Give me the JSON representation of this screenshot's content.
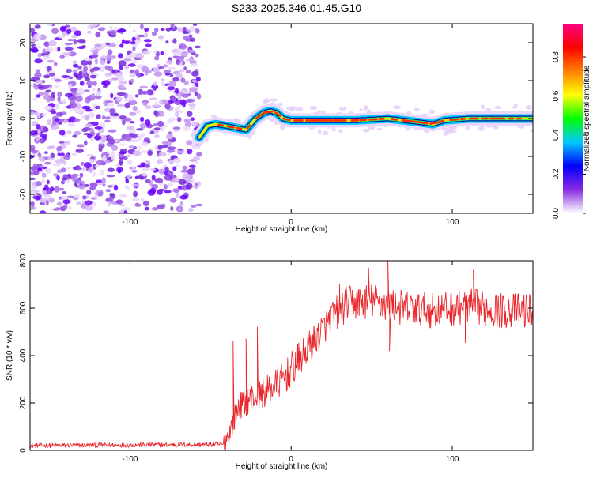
{
  "title": "S233.2025.346.01.45.G10",
  "charts": {
    "spectrogram": {
      "type": "heatmap",
      "xlabel": "Height of straight line (km)",
      "ylabel": "Frequency (Hz)",
      "xlim": [
        -162,
        150
      ],
      "ylim": [
        -25,
        25
      ],
      "xticks": [
        -100,
        0,
        100
      ],
      "xtick_labels": [
        "-100",
        "0",
        "100"
      ],
      "yticks": [
        -20,
        -10,
        0,
        10,
        20
      ],
      "ytick_labels": [
        "-20",
        "-10",
        "0",
        "10",
        "20"
      ],
      "noise_region_end_km": -57,
      "tone_track": {
        "x": [
          -57,
          -52,
          -47,
          -40,
          -34,
          -28,
          -22,
          -17,
          -13,
          -9,
          -5,
          0,
          10,
          20,
          40,
          60,
          80,
          88,
          95,
          110,
          130,
          150
        ],
        "y": [
          -5,
          -2,
          -1.5,
          -2,
          -2.5,
          -3,
          0,
          1.5,
          2,
          1.5,
          0,
          -0.5,
          -0.5,
          -0.5,
          -0.5,
          0,
          -1,
          -1.5,
          -0.5,
          0,
          0,
          0
        ]
      }
    },
    "colorbar": {
      "label": "Normalized spectral amplitude",
      "range": [
        0.0,
        0.97
      ],
      "ticks": [
        0.0,
        0.2,
        0.4,
        0.6,
        0.8
      ],
      "tick_labels": [
        "0.0",
        "0.2",
        "0.4",
        "0.6",
        "0.8"
      ],
      "colormap": [
        "#ffffff",
        "#8a2be2",
        "#0000ff",
        "#00c8ff",
        "#00ff00",
        "#ffff00",
        "#ff8000",
        "#ff0000",
        "#ff0080"
      ]
    },
    "snr": {
      "type": "line",
      "xlabel": "Height of straight line (km)",
      "ylabel": "SNR (10 * v/v)",
      "xlim": [
        -162,
        150
      ],
      "ylim": [
        0,
        800
      ],
      "xticks": [
        -100,
        0,
        100
      ],
      "xtick_labels": [
        "-100",
        "0",
        "100"
      ],
      "yticks": [
        0,
        200,
        400,
        600,
        800
      ],
      "ytick_labels": [
        "0",
        "200",
        "400",
        "600",
        "800"
      ],
      "series": [
        {
          "name": "SNR",
          "color": "#e8262b",
          "trend": {
            "x": [
              -162,
              -42,
              -38,
              -33,
              -25,
              -15,
              -5,
              5,
              15,
              25,
              35,
              50,
              70,
              90,
              110,
              130,
              150
            ],
            "y": [
              20,
              25,
              80,
              180,
              220,
              250,
              300,
              380,
              470,
              560,
              620,
              630,
              600,
              590,
              610,
              590,
              590
            ]
          },
          "spikes": [
            {
              "x": -36,
              "y": 460
            },
            {
              "x": -28,
              "y": 470
            },
            {
              "x": -21,
              "y": 520
            },
            {
              "x": 30,
              "y": 700
            },
            {
              "x": 48,
              "y": 770
            },
            {
              "x": 60,
              "y": 815
            },
            {
              "x": 61,
              "y": 420
            },
            {
              "x": 108,
              "y": 455
            },
            {
              "x": 113,
              "y": 760
            }
          ]
        }
      ]
    }
  }
}
